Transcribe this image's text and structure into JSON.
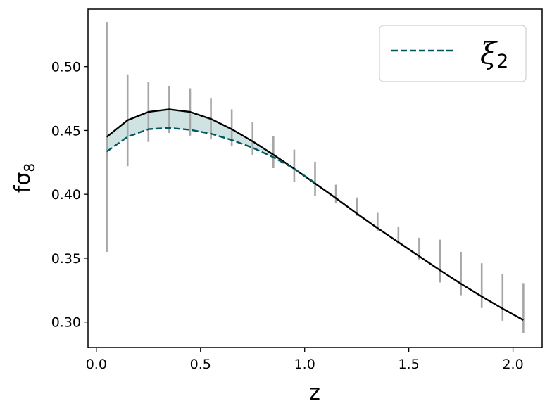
{
  "chart_data": {
    "type": "line",
    "xlabel": "z",
    "ylabel": "fσ",
    "ylabel_sub": "8",
    "xlim": [
      -0.04,
      2.14
    ],
    "ylim": [
      0.28,
      0.545
    ],
    "xticks": [
      0.0,
      0.5,
      1.0,
      1.5,
      2.0
    ],
    "xtick_labels": [
      "0.0",
      "0.5",
      "1.0",
      "1.5",
      "2.0"
    ],
    "yticks": [
      0.3,
      0.35,
      0.4,
      0.45,
      0.5
    ],
    "ytick_labels": [
      "0.30",
      "0.35",
      "0.40",
      "0.45",
      "0.50"
    ],
    "grid": false,
    "legend": {
      "position": "top-right",
      "entries": [
        {
          "symbol": "ξ",
          "sub": "2",
          "series": "xi2"
        }
      ]
    },
    "z_full": [
      0.05,
      0.15,
      0.25,
      0.35,
      0.45,
      0.55,
      0.65,
      0.75,
      0.85,
      0.95,
      1.05,
      1.15,
      1.25,
      1.35,
      1.45,
      1.55,
      1.65,
      1.75,
      1.85,
      1.95,
      2.05
    ],
    "series": [
      {
        "id": "reference",
        "color": "#000000",
        "style": "solid",
        "x": [
          0.05,
          0.15,
          0.25,
          0.35,
          0.45,
          0.55,
          0.65,
          0.75,
          0.85,
          0.95,
          1.05,
          1.15,
          1.25,
          1.35,
          1.45,
          1.55,
          1.65,
          1.75,
          1.85,
          1.95,
          2.05
        ],
        "y": [
          0.445,
          0.458,
          0.4645,
          0.4665,
          0.4645,
          0.459,
          0.451,
          0.4415,
          0.431,
          0.42,
          0.4085,
          0.397,
          0.385,
          0.3735,
          0.3625,
          0.3515,
          0.3405,
          0.33,
          0.32,
          0.3105,
          0.3015
        ]
      },
      {
        "id": "xi2",
        "color": "#00585e",
        "style": "dashed",
        "x": [
          0.05,
          0.15,
          0.25,
          0.35,
          0.45,
          0.55,
          0.65,
          0.75,
          0.85,
          0.95,
          1.05
        ],
        "y": [
          0.4335,
          0.445,
          0.451,
          0.452,
          0.4505,
          0.4475,
          0.4425,
          0.4365,
          0.429,
          0.42,
          0.409
        ]
      }
    ],
    "fill_between": {
      "color": "#cfe3e3",
      "between": [
        "reference",
        "xi2"
      ]
    },
    "error_bars": {
      "color": "#a6a6a6",
      "x": [
        0.05,
        0.15,
        0.25,
        0.35,
        0.45,
        0.55,
        0.65,
        0.75,
        0.85,
        0.95,
        1.05,
        1.15,
        1.25,
        1.35,
        1.45,
        1.55,
        1.65,
        1.75,
        1.85,
        1.95,
        2.05
      ],
      "low": [
        0.355,
        0.422,
        0.441,
        0.448,
        0.446,
        0.443,
        0.4375,
        0.4305,
        0.4205,
        0.41,
        0.3985,
        0.3935,
        0.383,
        0.371,
        0.361,
        0.349,
        0.331,
        0.321,
        0.311,
        0.301,
        0.291
      ],
      "high": [
        0.535,
        0.494,
        0.488,
        0.485,
        0.483,
        0.4755,
        0.4665,
        0.4565,
        0.4455,
        0.435,
        0.4255,
        0.4075,
        0.3975,
        0.3855,
        0.3745,
        0.366,
        0.3645,
        0.355,
        0.346,
        0.3375,
        0.3305
      ]
    }
  }
}
